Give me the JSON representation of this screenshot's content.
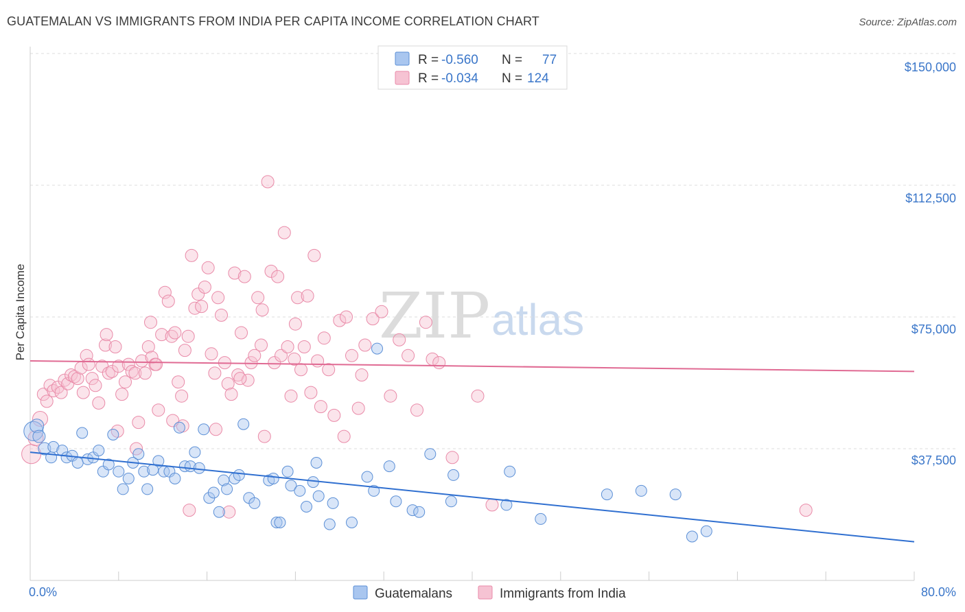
{
  "title": "GUATEMALAN VS IMMIGRANTS FROM INDIA PER CAPITA INCOME CORRELATION CHART",
  "source": "Source: ZipAtlas.com",
  "watermark": {
    "zip": "ZIP",
    "atlas": "atlas"
  },
  "colors": {
    "blue": "#5b8fd6",
    "blue_fill": "#a9c6ef",
    "blue_line": "#2f6fd0",
    "pink": "#e98aa8",
    "pink_fill": "#f6c3d3",
    "pink_line": "#e06a93",
    "tick_text": "#3a76c9",
    "grid": "#dddddd"
  },
  "legend": {
    "rows": [
      {
        "r_label": "R = ",
        "r_value": "-0.560",
        "n_label": "N = ",
        "n_value": "77",
        "series": "blue"
      },
      {
        "r_label": "R = ",
        "r_value": "-0.034",
        "n_label": "N = ",
        "n_value": "124",
        "series": "pink"
      }
    ]
  },
  "bottom_legend": [
    {
      "label": "Guatemalans",
      "series": "blue"
    },
    {
      "label": "Immigrants from India",
      "series": "pink"
    }
  ],
  "chart_data": {
    "type": "scatter",
    "title": "GUATEMALAN VS IMMIGRANTS FROM INDIA PER CAPITA INCOME CORRELATION CHART",
    "xlabel": "",
    "ylabel": "Per Capita Income",
    "xlim": [
      0,
      80
    ],
    "ylim": [
      0,
      155000
    ],
    "x_tick_labels": [
      "0.0%",
      "80.0%"
    ],
    "y_ticks": [
      37500,
      75000,
      112500,
      150000
    ],
    "y_tick_labels": [
      "$37,500",
      "$75,000",
      "$112,500",
      "$150,000"
    ],
    "grid": true,
    "series": [
      {
        "name": "Guatemalans",
        "color": "blue",
        "r": -0.56,
        "n": 77,
        "trend": {
          "x": [
            0,
            80
          ],
          "y": [
            36500,
            11000
          ]
        },
        "points": [
          [
            0.3,
            42500,
            14
          ],
          [
            0.6,
            44000,
            10
          ],
          [
            0.8,
            41000,
            9
          ],
          [
            1.3,
            37500,
            9
          ],
          [
            1.9,
            35000,
            8
          ],
          [
            2.1,
            38000,
            8
          ],
          [
            2.9,
            37000,
            8
          ],
          [
            3.3,
            35000,
            8
          ],
          [
            3.8,
            35500,
            8
          ],
          [
            4.3,
            33500,
            8
          ],
          [
            4.7,
            42000,
            8
          ],
          [
            5.2,
            34500,
            8
          ],
          [
            5.7,
            35000,
            8
          ],
          [
            6.2,
            37000,
            8
          ],
          [
            6.6,
            31000,
            8
          ],
          [
            7.1,
            33000,
            8
          ],
          [
            7.5,
            41500,
            8
          ],
          [
            8.0,
            31000,
            8
          ],
          [
            8.4,
            26000,
            8
          ],
          [
            8.9,
            29000,
            8
          ],
          [
            9.3,
            33500,
            8
          ],
          [
            9.8,
            36000,
            8
          ],
          [
            10.3,
            31000,
            8
          ],
          [
            10.6,
            26000,
            8
          ],
          [
            11.1,
            31500,
            8
          ],
          [
            11.6,
            34000,
            8
          ],
          [
            12.1,
            31000,
            8
          ],
          [
            12.6,
            31000,
            8
          ],
          [
            13.1,
            29000,
            8
          ],
          [
            13.5,
            43500,
            8
          ],
          [
            14.0,
            32500,
            8
          ],
          [
            14.5,
            32500,
            8
          ],
          [
            14.9,
            36500,
            8
          ],
          [
            15.3,
            32000,
            8
          ],
          [
            15.7,
            43000,
            8
          ],
          [
            16.2,
            23500,
            8
          ],
          [
            16.6,
            25000,
            8
          ],
          [
            17.1,
            19500,
            8
          ],
          [
            17.5,
            28500,
            8
          ],
          [
            17.8,
            26000,
            8
          ],
          [
            18.5,
            29000,
            8
          ],
          [
            18.9,
            30000,
            8
          ],
          [
            19.3,
            44500,
            8
          ],
          [
            19.8,
            23500,
            8
          ],
          [
            20.3,
            22000,
            8
          ],
          [
            21.6,
            28500,
            8
          ],
          [
            22.0,
            29000,
            8
          ],
          [
            22.3,
            16500,
            8
          ],
          [
            22.6,
            16500,
            8
          ],
          [
            23.3,
            31000,
            8
          ],
          [
            23.6,
            27000,
            8
          ],
          [
            24.4,
            25500,
            8
          ],
          [
            25.0,
            21000,
            8
          ],
          [
            25.6,
            28000,
            8
          ],
          [
            25.9,
            33500,
            8
          ],
          [
            26.1,
            24000,
            8
          ],
          [
            27.1,
            16000,
            8
          ],
          [
            27.4,
            22000,
            8
          ],
          [
            29.1,
            16500,
            8
          ],
          [
            30.5,
            29500,
            8
          ],
          [
            31.1,
            25500,
            8
          ],
          [
            31.4,
            66000,
            8
          ],
          [
            32.5,
            32500,
            8
          ],
          [
            33.1,
            22500,
            8
          ],
          [
            34.6,
            20000,
            8
          ],
          [
            35.2,
            19500,
            8
          ],
          [
            36.2,
            36000,
            8
          ],
          [
            38.3,
            30000,
            8
          ],
          [
            38.1,
            22500,
            8
          ],
          [
            43.4,
            31000,
            8
          ],
          [
            43.1,
            21500,
            8
          ],
          [
            46.2,
            17500,
            8
          ],
          [
            52.2,
            24500,
            8
          ],
          [
            55.3,
            25500,
            8
          ],
          [
            58.4,
            24500,
            8
          ],
          [
            59.9,
            12500,
            8
          ],
          [
            61.2,
            14000,
            8
          ]
        ]
      },
      {
        "name": "Immigrants from India",
        "color": "pink",
        "r": -0.034,
        "n": 124,
        "trend": {
          "x": [
            0,
            80
          ],
          "y": [
            62500,
            59500
          ]
        },
        "points": [
          [
            0.1,
            36000,
            14
          ],
          [
            0.5,
            40500,
            11
          ],
          [
            0.9,
            46000,
            11
          ],
          [
            1.2,
            53000,
            9
          ],
          [
            1.5,
            51000,
            9
          ],
          [
            1.8,
            55500,
            9
          ],
          [
            2.1,
            54000,
            9
          ],
          [
            2.5,
            55000,
            9
          ],
          [
            2.8,
            53500,
            9
          ],
          [
            3.1,
            57000,
            9
          ],
          [
            3.4,
            56000,
            9
          ],
          [
            3.7,
            58500,
            9
          ],
          [
            4.0,
            58000,
            9
          ],
          [
            4.3,
            57500,
            9
          ],
          [
            4.6,
            60500,
            9
          ],
          [
            4.8,
            53500,
            9
          ],
          [
            5.1,
            64000,
            9
          ],
          [
            5.3,
            61500,
            9
          ],
          [
            5.6,
            57500,
            9
          ],
          [
            5.9,
            55500,
            9
          ],
          [
            6.2,
            50500,
            9
          ],
          [
            6.5,
            61000,
            9
          ],
          [
            6.8,
            67000,
            9
          ],
          [
            7.1,
            59000,
            9
          ],
          [
            7.4,
            59500,
            9
          ],
          [
            7.7,
            66500,
            9
          ],
          [
            8.0,
            61000,
            9
          ],
          [
            8.3,
            53000,
            9
          ],
          [
            8.6,
            56500,
            9
          ],
          [
            8.9,
            61500,
            9
          ],
          [
            9.2,
            59500,
            9
          ],
          [
            9.5,
            59000,
            9
          ],
          [
            9.8,
            45000,
            9
          ],
          [
            10.1,
            62500,
            9
          ],
          [
            10.4,
            59000,
            9
          ],
          [
            10.7,
            66500,
            9
          ],
          [
            11.0,
            63500,
            9
          ],
          [
            11.3,
            61500,
            9
          ],
          [
            11.6,
            48500,
            9
          ],
          [
            11.9,
            70000,
            9
          ],
          [
            12.2,
            82000,
            9
          ],
          [
            12.5,
            79500,
            9
          ],
          [
            12.8,
            69500,
            9
          ],
          [
            13.1,
            70500,
            9
          ],
          [
            13.4,
            56500,
            9
          ],
          [
            13.7,
            52500,
            9
          ],
          [
            14.0,
            65500,
            9
          ],
          [
            14.3,
            69500,
            9
          ],
          [
            14.6,
            92500,
            9
          ],
          [
            14.9,
            77500,
            9
          ],
          [
            15.2,
            81500,
            9
          ],
          [
            15.5,
            78000,
            9
          ],
          [
            15.8,
            83500,
            9
          ],
          [
            16.1,
            89000,
            9
          ],
          [
            16.4,
            64500,
            9
          ],
          [
            16.7,
            59000,
            9
          ],
          [
            17.0,
            80500,
            9
          ],
          [
            17.3,
            75500,
            9
          ],
          [
            17.6,
            62000,
            9
          ],
          [
            17.9,
            56000,
            9
          ],
          [
            18.2,
            53000,
            9
          ],
          [
            18.5,
            87500,
            9
          ],
          [
            18.8,
            58500,
            9
          ],
          [
            19.1,
            70500,
            9
          ],
          [
            19.4,
            86500,
            9
          ],
          [
            19.7,
            57000,
            9
          ],
          [
            20.0,
            62000,
            9
          ],
          [
            20.3,
            64000,
            9
          ],
          [
            20.6,
            80500,
            9
          ],
          [
            20.9,
            67000,
            9
          ],
          [
            21.2,
            41000,
            9
          ],
          [
            21.5,
            113500,
            9
          ],
          [
            21.8,
            88000,
            9
          ],
          [
            22.1,
            62000,
            9
          ],
          [
            22.4,
            86500,
            9
          ],
          [
            22.7,
            64000,
            9
          ],
          [
            23.0,
            99000,
            9
          ],
          [
            23.3,
            66500,
            9
          ],
          [
            23.6,
            52500,
            9
          ],
          [
            23.9,
            63000,
            9
          ],
          [
            24.2,
            80500,
            9
          ],
          [
            24.5,
            60000,
            9
          ],
          [
            24.8,
            66500,
            9
          ],
          [
            25.1,
            81000,
            9
          ],
          [
            25.4,
            53500,
            9
          ],
          [
            25.7,
            92500,
            9
          ],
          [
            26.0,
            62500,
            9
          ],
          [
            26.3,
            49500,
            9
          ],
          [
            26.6,
            69000,
            9
          ],
          [
            27.0,
            60000,
            9
          ],
          [
            27.5,
            47000,
            9
          ],
          [
            28.0,
            74000,
            9
          ],
          [
            28.6,
            75000,
            9
          ],
          [
            29.1,
            64000,
            9
          ],
          [
            29.7,
            49000,
            9
          ],
          [
            30.3,
            67000,
            9
          ],
          [
            31.0,
            74500,
            9
          ],
          [
            31.8,
            76500,
            9
          ],
          [
            32.6,
            52500,
            9
          ],
          [
            33.4,
            68500,
            9
          ],
          [
            34.2,
            64000,
            9
          ],
          [
            35.0,
            48500,
            9
          ],
          [
            35.8,
            73500,
            9
          ],
          [
            36.4,
            63000,
            9
          ],
          [
            37.0,
            62000,
            9
          ],
          [
            38.2,
            35000,
            9
          ],
          [
            40.5,
            52500,
            9
          ],
          [
            41.8,
            21500,
            9
          ],
          [
            13.8,
            44000,
            9
          ],
          [
            9.6,
            37500,
            9
          ],
          [
            18.0,
            19500,
            9
          ],
          [
            14.4,
            20000,
            9
          ],
          [
            70.2,
            20000,
            9
          ],
          [
            24.0,
            73000,
            9
          ],
          [
            11.4,
            61500,
            9
          ],
          [
            19.0,
            57500,
            9
          ],
          [
            21.0,
            77000,
            9
          ],
          [
            12.9,
            45500,
            9
          ],
          [
            16.8,
            43000,
            9
          ],
          [
            28.4,
            41000,
            9
          ],
          [
            6.9,
            70000,
            9
          ],
          [
            10.9,
            73500,
            9
          ],
          [
            7.9,
            42500,
            9
          ],
          [
            30.0,
            58500,
            9
          ]
        ]
      }
    ]
  }
}
